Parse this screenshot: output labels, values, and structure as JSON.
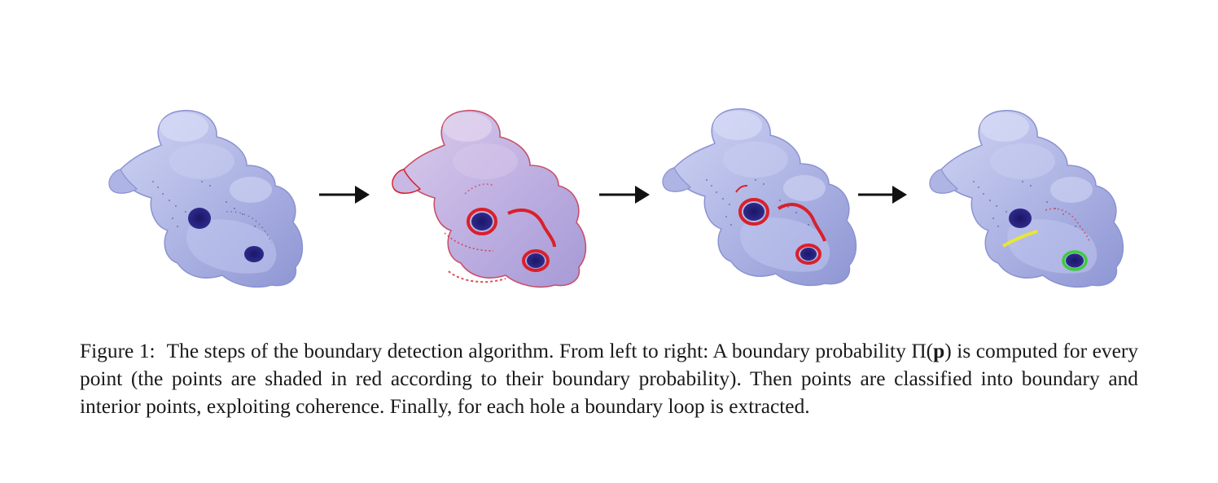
{
  "figure": {
    "label": "Figure 1:",
    "caption_part1": "The steps of the boundary detection algorithm. From left to right: A boundary probability ",
    "math_symbol": "Π(",
    "math_bold": "p",
    "math_close": ")",
    "caption_part2": " is computed for every point (the points are shaded in red according to their boundary probability). Then points are classified into boundary and interior points, exploiting coherence. Finally, for each hole a boundary loop is extracted.",
    "panels": [
      {
        "name": "input-point-cloud"
      },
      {
        "name": "boundary-probability"
      },
      {
        "name": "classified-boundary-points"
      },
      {
        "name": "extracted-boundary-loops"
      }
    ]
  },
  "colors": {
    "body": "#b7bde8",
    "body_shadow": "#8f97d6",
    "highlight": "#e6e8fb",
    "hole": "#25207a",
    "boundary_red": "#d9202a",
    "loop_yellow": "#e8e830",
    "loop_green": "#3ccc3c",
    "arrow": "#111111"
  }
}
